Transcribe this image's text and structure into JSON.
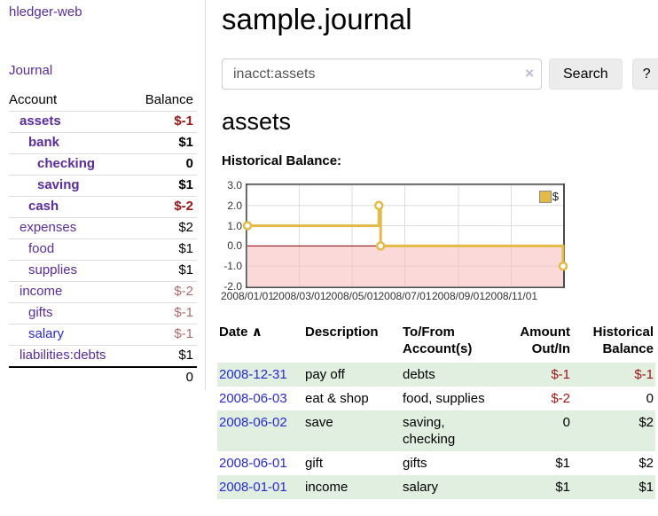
{
  "app_title": "hledger-web",
  "sidebar": {
    "journal_link": "Journal",
    "accounts": {
      "header_account": "Account",
      "header_balance": "Balance",
      "rows": [
        {
          "name": "assets",
          "balance": "$-1"
        },
        {
          "name": "bank",
          "balance": "$1"
        },
        {
          "name": "checking",
          "balance": "0"
        },
        {
          "name": "saving",
          "balance": "$1"
        },
        {
          "name": "cash",
          "balance": "$-2"
        },
        {
          "name": "expenses",
          "balance": "$2"
        },
        {
          "name": "food",
          "balance": "$1"
        },
        {
          "name": "supplies",
          "balance": "$1"
        },
        {
          "name": "income",
          "balance": "$-2"
        },
        {
          "name": "gifts",
          "balance": "$-1"
        },
        {
          "name": "salary",
          "balance": "$-1"
        },
        {
          "name": "liabilities:debts",
          "balance": "$1"
        }
      ],
      "total": "0"
    }
  },
  "header": {
    "title": "sample.journal"
  },
  "search": {
    "value": "inacct:assets",
    "clear_icon": "×",
    "search_button": "Search",
    "help_button": "?"
  },
  "account_page": {
    "title": "assets",
    "section_label": "Historical Balance:"
  },
  "chart_data": {
    "type": "line",
    "title": "Historical Balance:",
    "step": true,
    "series": [
      {
        "name": "$",
        "color": "#e3ba45",
        "points": [
          [
            "2008-01-01",
            1
          ],
          [
            "2008-06-01",
            2
          ],
          [
            "2008-06-03",
            0
          ],
          [
            "2008-12-31",
            -1
          ]
        ]
      }
    ],
    "ylim": [
      -2.0,
      3.0
    ],
    "yticks": [
      3.0,
      2.0,
      1.0,
      0.0,
      -1.0,
      -2.0
    ],
    "x_range": [
      "2008-01-01",
      "2008-12-31"
    ],
    "xticks": [
      "2008/01/01",
      "2008/03/01",
      "2008/05/01",
      "2008/07/01",
      "2008/09/01",
      "2008/11/01"
    ],
    "grid": true,
    "legend_position": "top-right",
    "negative_region_color": "#f7baba",
    "zero_line_color": "#8b0000"
  },
  "register": {
    "headers": {
      "date": "Date",
      "sort_icon": "∧",
      "description": "Description",
      "accounts": "To/From Account(s)",
      "amount": "Amount Out/In",
      "balance": "Historical Balance"
    },
    "rows": [
      {
        "date": "2008-12-31",
        "description": "pay off",
        "accounts": "debts",
        "amount": "$-1",
        "balance": "$-1"
      },
      {
        "date": "2008-06-03",
        "description": "eat & shop",
        "accounts": "food, supplies",
        "amount": "$-2",
        "balance": "0"
      },
      {
        "date": "2008-06-02",
        "description": "save",
        "accounts": "saving, checking",
        "amount": "0",
        "balance": "$2"
      },
      {
        "date": "2008-06-01",
        "description": "gift",
        "accounts": "gifts",
        "amount": "$1",
        "balance": "$2"
      },
      {
        "date": "2008-01-01",
        "description": "income",
        "accounts": "salary",
        "amount": "$1",
        "balance": "$1"
      }
    ]
  },
  "colors": {
    "link_purple": "#5a2ca0",
    "link_blue": "#2a2ad4",
    "negative_strong": "#a01616",
    "negative_soft": "#b26a6a",
    "row_green": "#e0efdf",
    "chart_gold": "#e3ba45",
    "chart_negative_bg": "#f7baba",
    "zero_line_red": "#8b0000"
  }
}
